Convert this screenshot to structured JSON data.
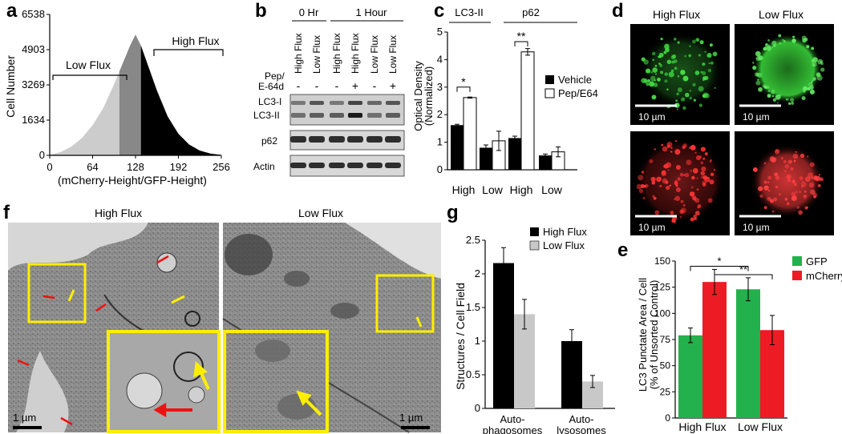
{
  "panels": {
    "a": {
      "letter": "a",
      "ylabel": "Cell Number",
      "xlabel": "(mCherry-Height/GFP-Height)",
      "yticks": [
        "0",
        "1634",
        "3269",
        "4903",
        "6538"
      ],
      "xticks": [
        "0",
        "64",
        "128",
        "192",
        "256"
      ],
      "low_label": "Low Flux",
      "high_label": "High Flux"
    },
    "b": {
      "letter": "b",
      "time0": "0 Hr",
      "time1": "1 Hour",
      "lanes": [
        "High Flux",
        "Low Flux",
        "High Flux",
        "High Flux",
        "Low Flux",
        "Low Flux"
      ],
      "treat_label_1": "Pep/",
      "treat_label_2": "E-64d",
      "treatments": [
        "-",
        "-",
        "-",
        "+",
        "-",
        "+"
      ],
      "rows": [
        "LC3-I",
        "LC3-II",
        "p62",
        "Actin"
      ]
    },
    "c": {
      "letter": "c",
      "group1": "LC3-II",
      "group2": "p62",
      "ylabel1": "Optical Density",
      "ylabel2": "(Normalized)",
      "legend": [
        "Vehicle",
        "Pep/E64"
      ],
      "sig1": "*",
      "sig2": "**"
    },
    "d": {
      "letter": "d",
      "col1": "High Flux",
      "col2": "Low Flux",
      "scale": [
        "10 µm",
        "10 µm",
        "10 µm",
        "10 µm"
      ]
    },
    "e": {
      "letter": "e",
      "ylabel1": "LC3 Punctate Area / Cell",
      "ylabel2": "(% of Unsorted Control)",
      "legend": [
        "GFP",
        "mCherry"
      ],
      "sig1": "*",
      "sig2": "**"
    },
    "f": {
      "letter": "f",
      "title_left": "High Flux",
      "title_right": "Low Flux",
      "scale_left": "1 µm",
      "scale_right": "1 µm"
    },
    "g": {
      "letter": "g",
      "ylabel": "Structures / Cell Field",
      "legend": [
        "High Flux",
        "Low Flux"
      ],
      "cat1_l1": "Auto-",
      "cat1_l2": "phagosomes",
      "cat2_l1": "Auto-",
      "cat2_l2": "lysosomes"
    }
  },
  "chart_data": [
    {
      "type": "area",
      "title": "",
      "xlabel": "(mCherry-Height/GFP-Height)",
      "ylabel": "Cell Number",
      "xlim": [
        0,
        256
      ],
      "ylim": [
        0,
        6538
      ],
      "x": [
        0,
        16,
        32,
        48,
        64,
        80,
        96,
        104,
        112,
        120,
        128,
        136,
        144,
        152,
        160,
        176,
        192,
        208,
        224,
        240,
        256
      ],
      "values": [
        20,
        150,
        400,
        800,
        1400,
        2200,
        3300,
        3900,
        4500,
        5100,
        5600,
        5100,
        4400,
        3700,
        3000,
        1800,
        1000,
        500,
        220,
        80,
        20
      ]
    },
    {
      "type": "bar",
      "title": "",
      "ylabel": "Optical Density (Normalized)",
      "ylim": [
        0,
        5
      ],
      "yticks": [
        0,
        1,
        2,
        3,
        4,
        5
      ],
      "categories": [
        "High",
        "Low",
        "High",
        "Low"
      ],
      "groups": [
        "LC3-II",
        "p62"
      ],
      "series": [
        {
          "name": "Vehicle",
          "values": [
            1.62,
            0.8,
            1.15,
            0.52
          ],
          "errors": [
            0.03,
            0.1,
            0.07,
            0.05
          ]
        },
        {
          "name": "Pep/E64",
          "values": [
            2.62,
            1.05,
            4.28,
            0.65
          ],
          "errors": [
            0.02,
            0.35,
            0.12,
            0.18
          ]
        }
      ]
    },
    {
      "type": "bar",
      "title": "",
      "ylabel": "LC3 Punctate Area / Cell (% of Unsorted Control)",
      "ylim": [
        0,
        150
      ],
      "yticks": [
        0,
        25,
        50,
        75,
        100,
        125,
        150
      ],
      "categories": [
        "High Flux",
        "Low Flux"
      ],
      "series": [
        {
          "name": "GFP",
          "values": [
            79,
            123
          ],
          "errors": [
            7,
            11
          ]
        },
        {
          "name": "mCherry",
          "values": [
            130,
            84
          ],
          "errors": [
            12,
            14
          ]
        }
      ]
    },
    {
      "type": "bar",
      "title": "",
      "ylabel": "Structures / Cell Field",
      "ylim": [
        0,
        2.5
      ],
      "yticks": [
        0,
        0.5,
        1,
        1.5,
        2,
        2.5
      ],
      "ytick_labels": [
        "0",
        "0.5",
        "1",
        "1.5",
        "2",
        "2.5"
      ],
      "categories": [
        "Autophagosomes",
        "Autolysosomes"
      ],
      "series": [
        {
          "name": "High Flux",
          "values": [
            2.16,
            1.0
          ],
          "errors": [
            0.23,
            0.17
          ]
        },
        {
          "name": "Low Flux",
          "values": [
            1.4,
            0.4
          ],
          "errors": [
            0.22,
            0.09
          ]
        }
      ]
    }
  ],
  "colors": {
    "black": "#000000",
    "light_gray": "#cccccc",
    "mid_gray": "#888888",
    "gfp": "#22b14c",
    "mcherry": "#ed1c24",
    "yellow": "#ffee00"
  }
}
